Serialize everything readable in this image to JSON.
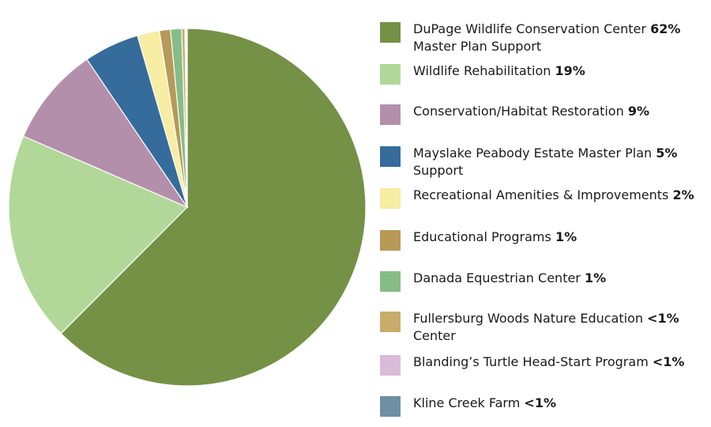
{
  "chart_data": {
    "type": "pie",
    "slices": [
      {
        "label": "DuPage Wildlife Conservation Center",
        "label_cont": "Master Plan Support",
        "display": "62%",
        "value": 62.5,
        "color": "#749146"
      },
      {
        "label": "Wildlife Rehabilitation",
        "display": "19%",
        "value": 19,
        "color": "#b2d899"
      },
      {
        "label": "Conservation/Habitat Restoration",
        "display": "9%",
        "value": 9,
        "color": "#b48fab"
      },
      {
        "label": "Mayslake Peabody Estate Master Plan",
        "label_cont": "Support",
        "display": "5%",
        "value": 5,
        "color": "#356c9c"
      },
      {
        "label": "Recreational Amenities & Improvements",
        "display": "2%",
        "value": 2,
        "color": "#f7eda3"
      },
      {
        "label": "Educational Programs",
        "display": "1%",
        "value": 1,
        "color": "#b79a58"
      },
      {
        "label": "Danada Equestrian Center",
        "display": "1%",
        "value": 1,
        "color": "#86bd87"
      },
      {
        "label": "Fullersburg Woods Nature Education",
        "label_cont": "Center",
        "display": "<1%",
        "value": 0.3,
        "color": "#c9ac6b"
      },
      {
        "label": "Blanding’s Turtle Head-Start Program",
        "display": "<1%",
        "value": 0.1,
        "color": "#d8bcd9"
      },
      {
        "label": "Kline Creek Farm",
        "display": "<1%",
        "value": 0.1,
        "color": "#6e8fa5"
      }
    ]
  }
}
